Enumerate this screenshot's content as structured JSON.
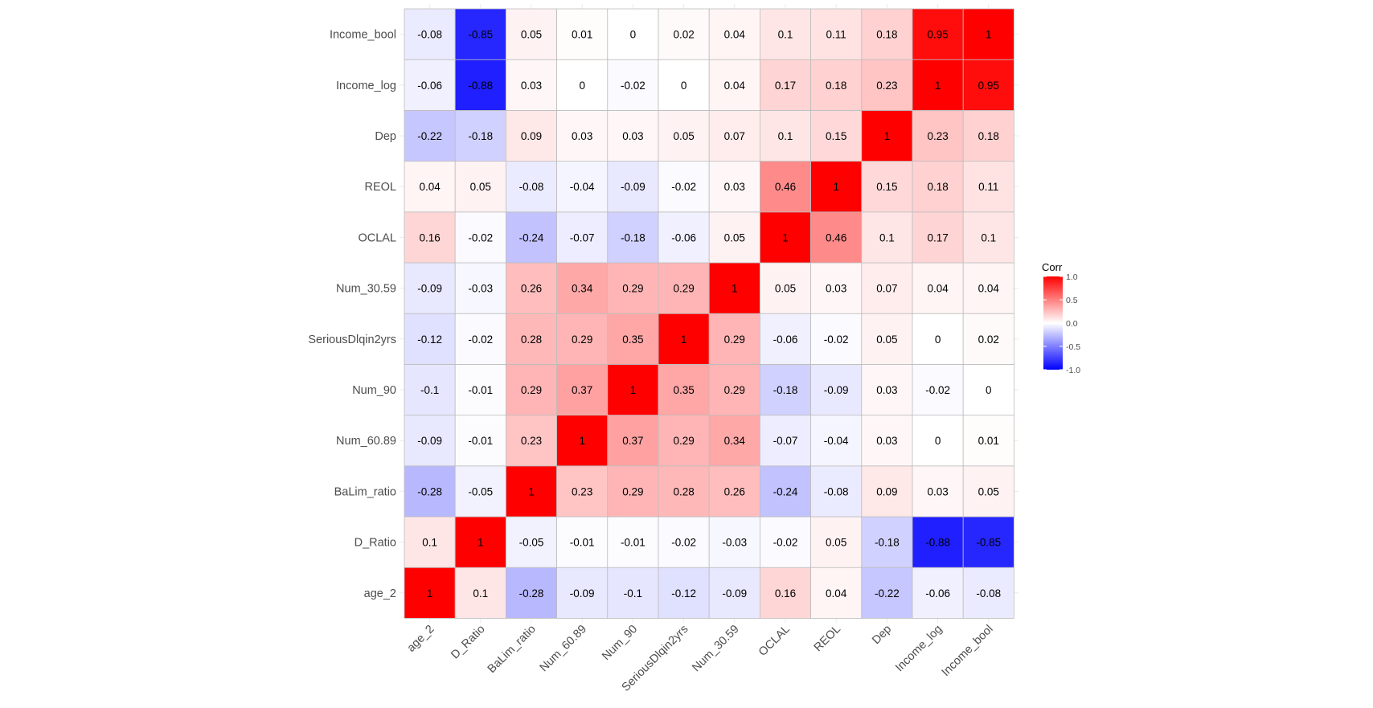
{
  "chart_data": {
    "type": "heatmap",
    "title": "",
    "xlabel": "",
    "ylabel": "",
    "variables": [
      "age_2",
      "D_Ratio",
      "BaLim_ratio",
      "Num_60.89",
      "Num_90",
      "SeriousDlqin2yrs",
      "Num_30.59",
      "OCLAL",
      "REOL",
      "Dep",
      "Income_log",
      "Income_bool"
    ],
    "values": [
      [
        1,
        0.1,
        -0.28,
        -0.09,
        -0.1,
        -0.12,
        -0.09,
        0.16,
        0.04,
        -0.22,
        -0.06,
        -0.08
      ],
      [
        0.1,
        1,
        -0.05,
        -0.01,
        -0.01,
        -0.02,
        -0.03,
        -0.02,
        0.05,
        -0.18,
        -0.88,
        -0.85
      ],
      [
        -0.28,
        -0.05,
        1,
        0.23,
        0.29,
        0.28,
        0.26,
        -0.24,
        -0.08,
        0.09,
        0.03,
        0.05
      ],
      [
        -0.09,
        -0.01,
        0.23,
        1,
        0.37,
        0.29,
        0.34,
        -0.07,
        -0.04,
        0.03,
        0,
        0.01
      ],
      [
        -0.1,
        -0.01,
        0.29,
        0.37,
        1,
        0.35,
        0.29,
        -0.18,
        -0.09,
        0.03,
        -0.02,
        0
      ],
      [
        -0.12,
        -0.02,
        0.28,
        0.29,
        0.35,
        1,
        0.29,
        -0.06,
        -0.02,
        0.05,
        0,
        0.02
      ],
      [
        -0.09,
        -0.03,
        0.26,
        0.34,
        0.29,
        0.29,
        1,
        0.05,
        0.03,
        0.07,
        0.04,
        0.04
      ],
      [
        0.16,
        -0.02,
        -0.24,
        -0.07,
        -0.18,
        -0.06,
        0.05,
        1,
        0.46,
        0.1,
        0.17,
        0.1
      ],
      [
        0.04,
        0.05,
        -0.08,
        -0.04,
        -0.09,
        -0.02,
        0.03,
        0.46,
        1,
        0.15,
        0.18,
        0.11
      ],
      [
        -0.22,
        -0.18,
        0.09,
        0.03,
        0.03,
        0.05,
        0.07,
        0.1,
        0.15,
        1,
        0.23,
        0.18
      ],
      [
        -0.06,
        -0.88,
        0.03,
        0,
        -0.02,
        0,
        0.04,
        0.17,
        0.18,
        0.23,
        1,
        0.95
      ],
      [
        -0.08,
        -0.85,
        0.05,
        0.01,
        0,
        0.02,
        0.04,
        0.1,
        0.11,
        0.18,
        0.95,
        1
      ]
    ],
    "color_scale": {
      "low": "#0000FF",
      "mid": "#FFFFFF",
      "high": "#FF0000",
      "limits": [
        -1,
        1
      ]
    },
    "legend": {
      "title": "Corr",
      "ticks": [
        1.0,
        0.5,
        0.0,
        -0.5,
        -1.0
      ],
      "tick_labels": [
        "1.0",
        "0.5",
        "0.0",
        "-0.5",
        "-1.0"
      ],
      "placement": "right"
    },
    "grid": true
  }
}
